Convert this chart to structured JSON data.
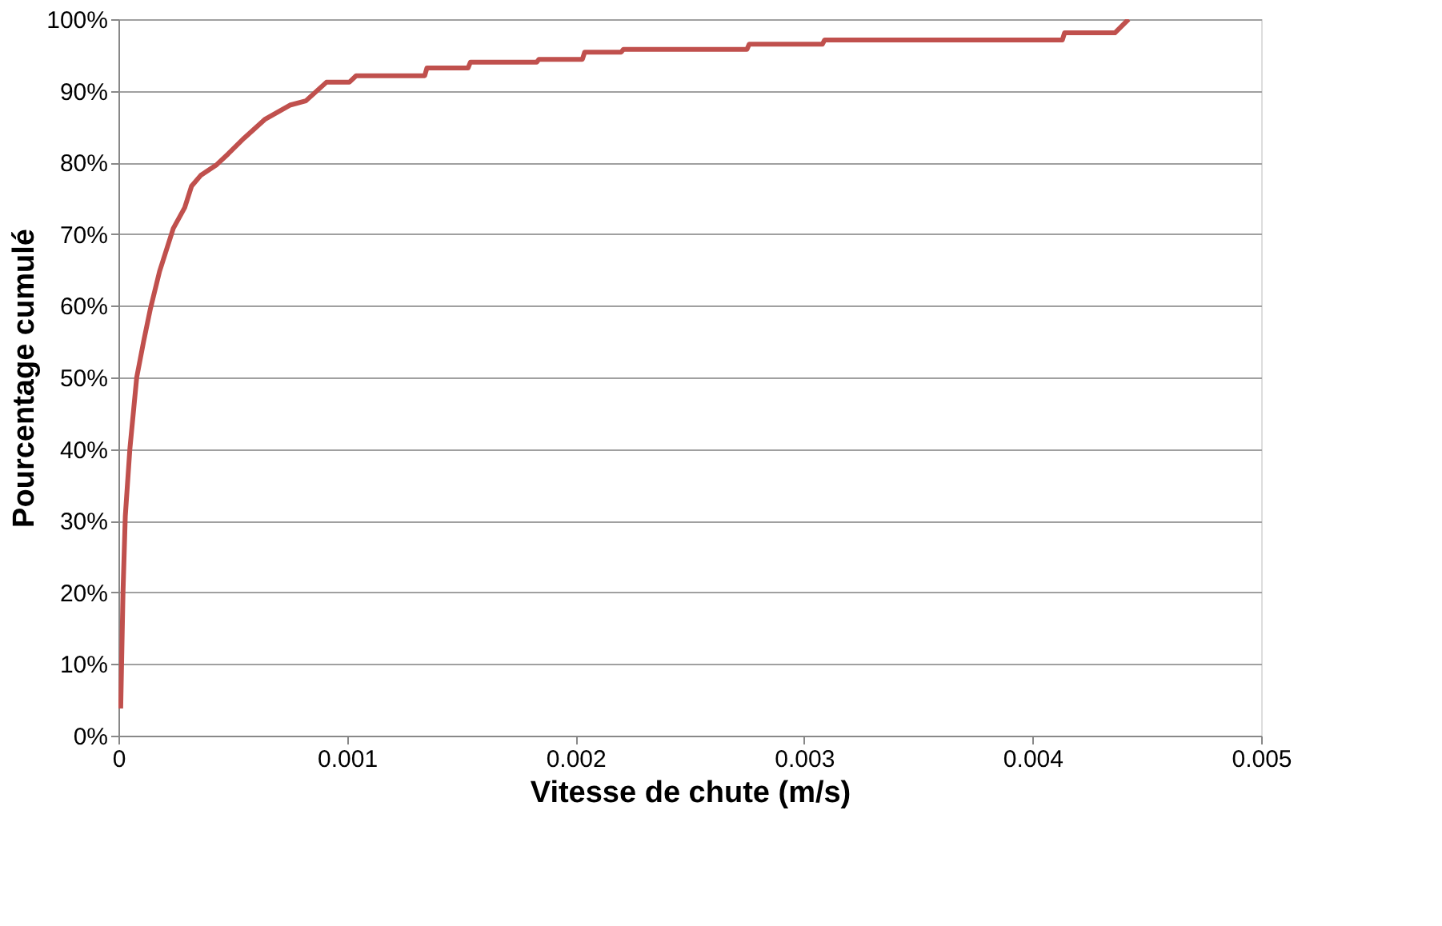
{
  "chart_data": {
    "type": "line",
    "xlabel": "Vitesse de chute (m/s)",
    "ylabel": "Pourcentage cumulé",
    "xlim": [
      0,
      0.005
    ],
    "xticks": [
      0,
      0.001,
      0.002,
      0.003,
      0.004,
      0.005
    ],
    "ylim": [
      0,
      100
    ],
    "yticks": [
      {
        "value": 0,
        "label": "0%"
      },
      {
        "value": 10,
        "label": "10%"
      },
      {
        "value": 20,
        "label": "20%"
      },
      {
        "value": 30,
        "label": "30%"
      },
      {
        "value": 40,
        "label": "40%"
      },
      {
        "value": 50,
        "label": "50%"
      },
      {
        "value": 60,
        "label": "60%"
      },
      {
        "value": 70,
        "label": "70%"
      },
      {
        "value": 80,
        "label": "80%"
      },
      {
        "value": 90,
        "label": "90%"
      },
      {
        "value": 100,
        "label": "100%"
      }
    ],
    "grid": "y",
    "marker": "none",
    "line_style": "solid",
    "series": [
      {
        "color": "#c0504d",
        "x": [
          1e-05,
          2e-05,
          3e-05,
          5e-05,
          8e-05,
          0.00011,
          0.00014,
          0.00018,
          0.00024,
          0.00029,
          0.00032,
          0.00036,
          0.00043,
          0.00048,
          0.00055,
          0.00064,
          0.00075,
          0.00082,
          0.00091,
          0.00101,
          0.00104,
          0.00134,
          0.00135,
          0.00153,
          0.00154,
          0.00183,
          0.00184,
          0.00203,
          0.00204,
          0.0022,
          0.00221,
          0.00275,
          0.00276,
          0.00308,
          0.00309,
          0.00413,
          0.00414,
          0.00436,
          0.00442
        ],
        "values": [
          3.8,
          20,
          30.6,
          40,
          50,
          55,
          59.6,
          64.8,
          70.8,
          73.7,
          76.7,
          78.2,
          79.7,
          81.2,
          83.4,
          86,
          88,
          88.6,
          91.2,
          91.2,
          92.1,
          92.1,
          93.2,
          93.2,
          94.0,
          94.0,
          94.4,
          94.4,
          95.4,
          95.4,
          95.8,
          95.8,
          96.5,
          96.5,
          97.1,
          97.1,
          98.1,
          98.1,
          100
        ]
      }
    ]
  }
}
